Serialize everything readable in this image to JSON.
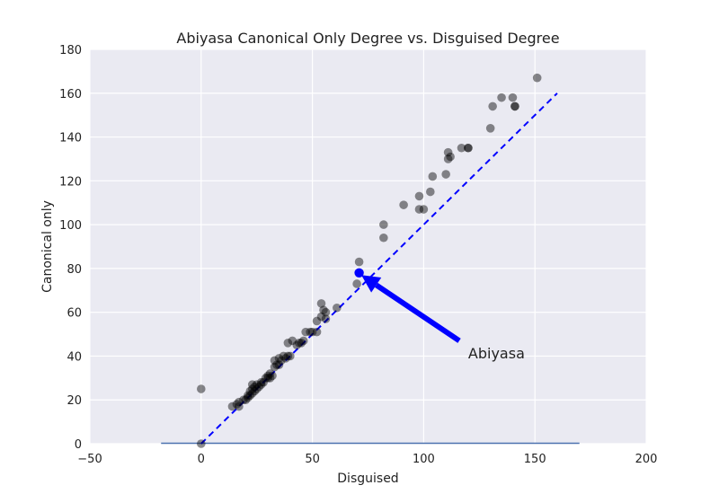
{
  "chart_data": {
    "type": "scatter",
    "title": "Abiyasa Canonical Only Degree vs. Disguised Degree",
    "xlabel": "Disguised",
    "ylabel": "Canonical only",
    "xlim": [
      -50,
      200
    ],
    "ylim": [
      0,
      180
    ],
    "xticks": [
      -50,
      0,
      50,
      100,
      150,
      200
    ],
    "yticks": [
      0,
      20,
      40,
      60,
      80,
      100,
      120,
      140,
      160,
      180
    ],
    "grid": true,
    "colors": {
      "background": "#eaeaf2",
      "grid": "#ffffff",
      "points": "#000000",
      "highlight": "#0000ff",
      "diagonal": "#0000ff",
      "baseline": "#4c72b0"
    },
    "points": [
      {
        "x": 0,
        "y": 25
      },
      {
        "x": 0,
        "y": 0
      },
      {
        "x": 14,
        "y": 17
      },
      {
        "x": 16,
        "y": 18
      },
      {
        "x": 17,
        "y": 17
      },
      {
        "x": 17,
        "y": 19
      },
      {
        "x": 19,
        "y": 20
      },
      {
        "x": 20,
        "y": 20
      },
      {
        "x": 21,
        "y": 21
      },
      {
        "x": 21,
        "y": 22
      },
      {
        "x": 22,
        "y": 22
      },
      {
        "x": 22,
        "y": 24
      },
      {
        "x": 23,
        "y": 23
      },
      {
        "x": 23,
        "y": 25
      },
      {
        "x": 23,
        "y": 27
      },
      {
        "x": 24,
        "y": 24
      },
      {
        "x": 24,
        "y": 26
      },
      {
        "x": 25,
        "y": 25
      },
      {
        "x": 25,
        "y": 27
      },
      {
        "x": 26,
        "y": 26
      },
      {
        "x": 27,
        "y": 27
      },
      {
        "x": 27,
        "y": 28
      },
      {
        "x": 28,
        "y": 28
      },
      {
        "x": 29,
        "y": 30
      },
      {
        "x": 30,
        "y": 31
      },
      {
        "x": 30,
        "y": 30
      },
      {
        "x": 31,
        "y": 30
      },
      {
        "x": 31,
        "y": 32
      },
      {
        "x": 32,
        "y": 31
      },
      {
        "x": 33,
        "y": 35
      },
      {
        "x": 33,
        "y": 38
      },
      {
        "x": 34,
        "y": 36
      },
      {
        "x": 35,
        "y": 36
      },
      {
        "x": 35,
        "y": 39
      },
      {
        "x": 36,
        "y": 38
      },
      {
        "x": 37,
        "y": 40
      },
      {
        "x": 38,
        "y": 39
      },
      {
        "x": 39,
        "y": 40
      },
      {
        "x": 39,
        "y": 46
      },
      {
        "x": 40,
        "y": 40
      },
      {
        "x": 41,
        "y": 47
      },
      {
        "x": 43,
        "y": 45
      },
      {
        "x": 44,
        "y": 46
      },
      {
        "x": 45,
        "y": 46
      },
      {
        "x": 46,
        "y": 47
      },
      {
        "x": 47,
        "y": 51
      },
      {
        "x": 49,
        "y": 51
      },
      {
        "x": 50,
        "y": 51
      },
      {
        "x": 52,
        "y": 51
      },
      {
        "x": 52,
        "y": 56
      },
      {
        "x": 54,
        "y": 58
      },
      {
        "x": 54,
        "y": 64
      },
      {
        "x": 55,
        "y": 61
      },
      {
        "x": 56,
        "y": 60
      },
      {
        "x": 56,
        "y": 57
      },
      {
        "x": 61,
        "y": 62
      },
      {
        "x": 70,
        "y": 73
      },
      {
        "x": 71,
        "y": 83
      },
      {
        "x": 82,
        "y": 94
      },
      {
        "x": 82,
        "y": 100
      },
      {
        "x": 91,
        "y": 109
      },
      {
        "x": 98,
        "y": 107
      },
      {
        "x": 98,
        "y": 113
      },
      {
        "x": 100,
        "y": 107
      },
      {
        "x": 103,
        "y": 115
      },
      {
        "x": 104,
        "y": 122
      },
      {
        "x": 110,
        "y": 123
      },
      {
        "x": 111,
        "y": 130
      },
      {
        "x": 111,
        "y": 133
      },
      {
        "x": 112,
        "y": 131
      },
      {
        "x": 117,
        "y": 135
      },
      {
        "x": 120,
        "y": 135
      },
      {
        "x": 120,
        "y": 135
      },
      {
        "x": 130,
        "y": 144
      },
      {
        "x": 131,
        "y": 154
      },
      {
        "x": 135,
        "y": 158
      },
      {
        "x": 140,
        "y": 158
      },
      {
        "x": 141,
        "y": 154
      },
      {
        "x": 141,
        "y": 154
      },
      {
        "x": 151,
        "y": 167
      }
    ],
    "highlight": {
      "x": 71,
      "y": 78,
      "label": "Abiyasa"
    },
    "annotation": {
      "text": "Abiyasa",
      "text_x": 120,
      "text_y": 39,
      "arrow_from_x": 116,
      "arrow_from_y": 47,
      "arrow_to_x": 72,
      "arrow_to_y": 77
    },
    "diagonal": {
      "style": "dashed",
      "x": [
        0,
        160
      ],
      "y": [
        0,
        160
      ]
    },
    "baseline": {
      "x": [
        -18,
        170
      ],
      "y": [
        0,
        0
      ]
    }
  }
}
